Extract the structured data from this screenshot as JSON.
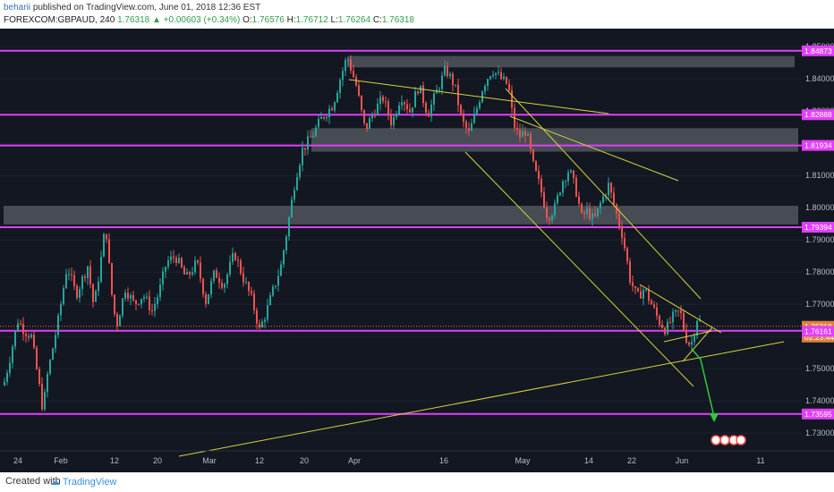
{
  "header": {
    "user": "beharii",
    "published_text": "published on TradingView.com, June 01, 2018 12:36 EST",
    "symbol": "FOREXCOM:GBPAUD, 240",
    "last": "1.76318",
    "change": "▲ +0.00603 (+0.34%)",
    "open_label": "O:",
    "open": "1.76576",
    "high_label": "H:",
    "high": "1.76712",
    "low_label": "L:",
    "low": "1.76264",
    "close_label": "C:",
    "close": "1.76318"
  },
  "footer": {
    "created_with": "Created with",
    "brand": "TradingView"
  },
  "colors": {
    "background": "#131722",
    "up": "#26a69a",
    "down": "#ef5350",
    "level": "#e040fb",
    "trendline": "#d4d43a",
    "zone": "#5a5d66",
    "arrow": "#2ecc40"
  },
  "chart_data": {
    "type": "candlestick",
    "symbol": "FOREXCOM:GBPAUD",
    "interval": "240",
    "ylim": [
      1.725,
      1.853
    ],
    "y_ticks": [
      "1.73000",
      "1.74000",
      "1.75000",
      "1.76000",
      "1.77000",
      "1.78000",
      "1.79000",
      "1.80000",
      "1.81000",
      "1.82000",
      "1.83000",
      "1.84000",
      "1.85000"
    ],
    "x_ticks": [
      "24",
      "Feb",
      "12",
      "20",
      "Mar",
      "12",
      "20",
      "Apr",
      "16",
      "May",
      "14",
      "22",
      "Jun",
      "11"
    ],
    "horizontal_levels": [
      "1.84873",
      "1.82888",
      "1.81934",
      "1.79394",
      "1.76318",
      "1.73595"
    ],
    "price_labels": [
      {
        "value": "1.76318",
        "kind": "last"
      },
      {
        "value": "02:23:44",
        "kind": "countdown"
      },
      {
        "value": "1.76161",
        "kind": "level"
      }
    ],
    "zones": [
      {
        "y_from": 1.8436,
        "y_to": 1.8471
      },
      {
        "y_from": 1.8174,
        "y_to": 1.8247
      },
      {
        "y_from": 1.7948,
        "y_to": 1.8006
      }
    ],
    "path": [
      [
        0,
        1.74
      ],
      [
        10,
        1.752
      ],
      [
        20,
        1.765
      ],
      [
        27,
        1.762
      ],
      [
        35,
        1.76
      ],
      [
        42,
        1.748
      ],
      [
        48,
        1.737
      ],
      [
        53,
        1.748
      ],
      [
        65,
        1.765
      ],
      [
        75,
        1.782
      ],
      [
        85,
        1.773
      ],
      [
        98,
        1.782
      ],
      [
        105,
        1.769
      ],
      [
        112,
        1.782
      ],
      [
        118,
        1.795
      ],
      [
        124,
        1.775
      ],
      [
        130,
        1.763
      ],
      [
        140,
        1.775
      ],
      [
        150,
        1.77
      ],
      [
        160,
        1.773
      ],
      [
        170,
        1.768
      ],
      [
        178,
        1.774
      ],
      [
        186,
        1.783
      ],
      [
        196,
        1.785
      ],
      [
        208,
        1.778
      ],
      [
        220,
        1.783
      ],
      [
        230,
        1.771
      ],
      [
        240,
        1.78
      ],
      [
        250,
        1.776
      ],
      [
        262,
        1.786
      ],
      [
        272,
        1.778
      ],
      [
        282,
        1.771
      ],
      [
        290,
        1.762
      ],
      [
        298,
        1.768
      ],
      [
        306,
        1.775
      ],
      [
        314,
        1.782
      ],
      [
        322,
        1.795
      ],
      [
        330,
        1.809
      ],
      [
        338,
        1.818
      ],
      [
        348,
        1.822
      ],
      [
        360,
        1.828
      ],
      [
        372,
        1.832
      ],
      [
        380,
        1.84
      ],
      [
        388,
        1.847
      ],
      [
        398,
        1.838
      ],
      [
        408,
        1.824
      ],
      [
        418,
        1.83
      ],
      [
        428,
        1.834
      ],
      [
        438,
        1.826
      ],
      [
        448,
        1.835
      ],
      [
        458,
        1.83
      ],
      [
        468,
        1.838
      ],
      [
        478,
        1.829
      ],
      [
        488,
        1.836
      ],
      [
        498,
        1.843
      ],
      [
        508,
        1.838
      ],
      [
        516,
        1.827
      ],
      [
        524,
        1.823
      ],
      [
        532,
        1.83
      ],
      [
        540,
        1.838
      ],
      [
        550,
        1.843
      ],
      [
        560,
        1.84
      ],
      [
        568,
        1.838
      ],
      [
        574,
        1.826
      ],
      [
        580,
        1.822
      ],
      [
        588,
        1.824
      ],
      [
        596,
        1.813
      ],
      [
        604,
        1.806
      ],
      [
        612,
        1.797
      ],
      [
        620,
        1.8
      ],
      [
        628,
        1.808
      ],
      [
        636,
        1.812
      ],
      [
        644,
        1.805
      ],
      [
        650,
        1.797
      ],
      [
        656,
        1.799
      ],
      [
        664,
        1.796
      ],
      [
        672,
        1.802
      ],
      [
        680,
        1.807
      ],
      [
        688,
        1.799
      ],
      [
        696,
        1.791
      ],
      [
        704,
        1.778
      ],
      [
        712,
        1.772
      ],
      [
        720,
        1.775
      ],
      [
        728,
        1.77
      ],
      [
        736,
        1.765
      ],
      [
        744,
        1.762
      ],
      [
        752,
        1.766
      ],
      [
        760,
        1.768
      ],
      [
        766,
        1.76
      ],
      [
        772,
        1.757
      ],
      [
        776,
        1.762
      ],
      [
        780,
        1.767
      ],
      [
        784,
        1.763
      ]
    ]
  }
}
